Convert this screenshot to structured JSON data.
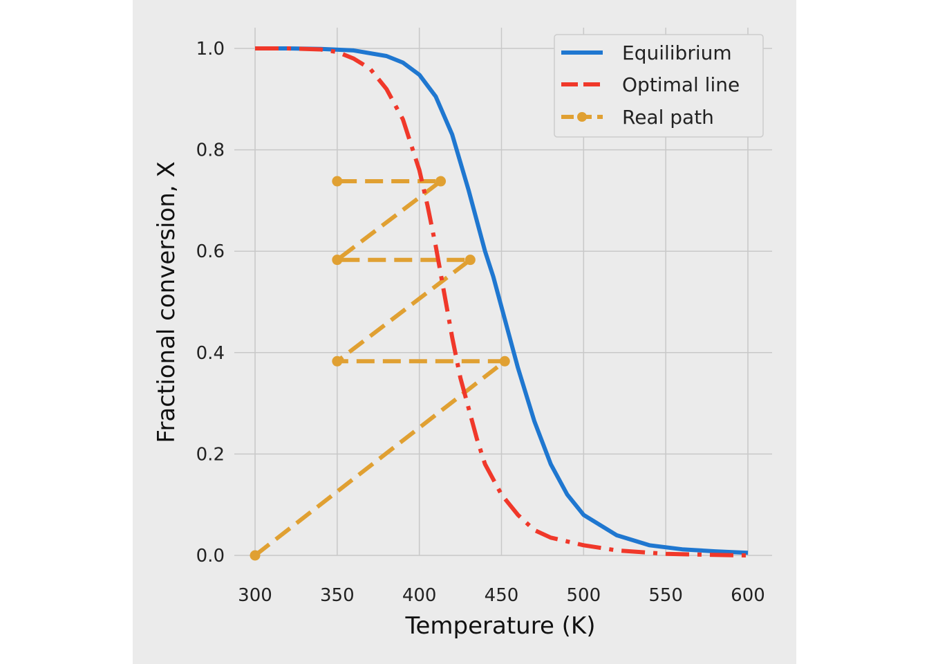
{
  "chart_data": {
    "type": "line",
    "xlabel": "Temperature (K)",
    "ylabel": "Fractional conversion, X",
    "xlim": [
      300,
      600
    ],
    "ylim": [
      0.0,
      1.0
    ],
    "xticks": [
      300,
      350,
      400,
      450,
      500,
      550,
      600
    ],
    "yticks": [
      "0.0",
      "0.2",
      "0.4",
      "0.6",
      "0.8",
      "1.0"
    ],
    "grid": true,
    "legend_position": "top-right",
    "colors": {
      "background": "#ebebeb",
      "grid": "#c8c8c8",
      "equilibrium": "#1f77d0",
      "optimal": "#f0382a",
      "real": "#e0a032"
    },
    "series": [
      {
        "name": "Equilibrium",
        "style": "solid",
        "x": [
          300,
          320,
          340,
          360,
          380,
          390,
          400,
          410,
          420,
          430,
          440,
          445,
          450,
          460,
          470,
          480,
          490,
          500,
          520,
          540,
          560,
          580,
          600
        ],
        "y": [
          1.0,
          1.0,
          0.999,
          0.996,
          0.985,
          0.972,
          0.948,
          0.905,
          0.83,
          0.72,
          0.6,
          0.55,
          0.49,
          0.37,
          0.265,
          0.18,
          0.12,
          0.08,
          0.04,
          0.02,
          0.012,
          0.008,
          0.005
        ]
      },
      {
        "name": "Optimal line",
        "style": "dashdot",
        "x": [
          300,
          320,
          340,
          350,
          360,
          370,
          380,
          390,
          400,
          405,
          410,
          415,
          420,
          425,
          430,
          435,
          440,
          450,
          460,
          470,
          480,
          500,
          520,
          550,
          580,
          600
        ],
        "y": [
          1.0,
          1.0,
          0.998,
          0.993,
          0.98,
          0.96,
          0.92,
          0.86,
          0.76,
          0.69,
          0.61,
          0.52,
          0.43,
          0.35,
          0.29,
          0.23,
          0.18,
          0.12,
          0.08,
          0.05,
          0.035,
          0.02,
          0.01,
          0.003,
          0.001,
          0.0
        ]
      },
      {
        "name": "Real path",
        "style": "dashed-marker",
        "x": [
          300,
          452,
          350,
          431,
          350,
          413,
          350
        ],
        "y": [
          0.0,
          0.383,
          0.383,
          0.583,
          0.583,
          0.738,
          0.738
        ]
      }
    ]
  }
}
